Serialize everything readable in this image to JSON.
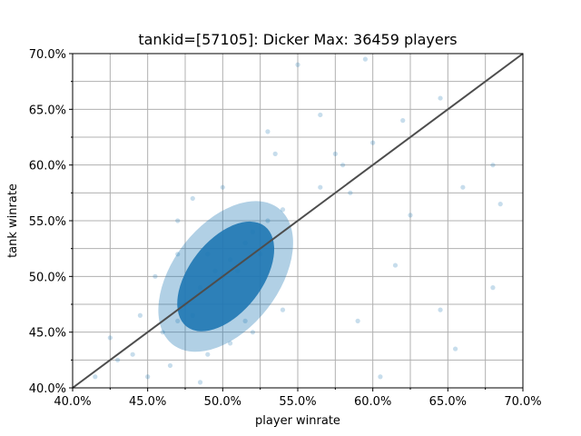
{
  "chart_data": {
    "type": "scatter",
    "title": "tankid=[57105]: Dicker Max: 36459 players",
    "xlabel": "player winrate",
    "ylabel": "tank winrate",
    "xlim": [
      0.4,
      0.7
    ],
    "ylim": [
      0.4,
      0.7
    ],
    "x_ticks": [
      {
        "value": 0.4,
        "label": "40.0%"
      },
      {
        "value": 0.45,
        "label": "45.0%"
      },
      {
        "value": 0.5,
        "label": "50.0%"
      },
      {
        "value": 0.55,
        "label": "55.0%"
      },
      {
        "value": 0.6,
        "label": "60.0%"
      },
      {
        "value": 0.65,
        "label": "65.0%"
      },
      {
        "value": 0.7,
        "label": "70.0%"
      }
    ],
    "y_ticks": [
      {
        "value": 0.4,
        "label": "40.0%"
      },
      {
        "value": 0.45,
        "label": "45.0%"
      },
      {
        "value": 0.5,
        "label": "50.0%"
      },
      {
        "value": 0.55,
        "label": "55.0%"
      },
      {
        "value": 0.6,
        "label": "60.0%"
      },
      {
        "value": 0.65,
        "label": "65.0%"
      },
      {
        "value": 0.7,
        "label": "70.0%"
      }
    ],
    "minor_ticks": [
      0.425,
      0.475,
      0.525,
      0.575,
      0.625,
      0.675
    ],
    "grid": true,
    "point_color": "#1f77b4",
    "point_alpha": 0.15,
    "reference_line": {
      "x": [
        0.4,
        0.7
      ],
      "y": [
        0.4,
        0.7
      ],
      "color": "#4d4d4d"
    },
    "series": [
      {
        "points": [
          [
            0.495,
            0.505
          ],
          [
            0.505,
            0.515
          ],
          [
            0.485,
            0.49
          ],
          [
            0.515,
            0.53
          ],
          [
            0.475,
            0.475
          ],
          [
            0.52,
            0.54
          ],
          [
            0.5,
            0.5
          ],
          [
            0.49,
            0.52
          ],
          [
            0.51,
            0.505
          ],
          [
            0.48,
            0.465
          ],
          [
            0.53,
            0.55
          ],
          [
            0.46,
            0.45
          ],
          [
            0.54,
            0.56
          ],
          [
            0.47,
            0.46
          ],
          [
            0.525,
            0.52
          ],
          [
            0.565,
            0.58
          ],
          [
            0.58,
            0.6
          ],
          [
            0.6,
            0.62
          ],
          [
            0.62,
            0.64
          ],
          [
            0.645,
            0.66
          ],
          [
            0.66,
            0.58
          ],
          [
            0.625,
            0.555
          ],
          [
            0.615,
            0.51
          ],
          [
            0.585,
            0.575
          ],
          [
            0.575,
            0.61
          ],
          [
            0.565,
            0.645
          ],
          [
            0.55,
            0.69
          ],
          [
            0.595,
            0.695
          ],
          [
            0.44,
            0.43
          ],
          [
            0.45,
            0.41
          ],
          [
            0.43,
            0.425
          ],
          [
            0.455,
            0.5
          ],
          [
            0.47,
            0.52
          ],
          [
            0.445,
            0.465
          ],
          [
            0.425,
            0.445
          ],
          [
            0.415,
            0.41
          ],
          [
            0.68,
            0.49
          ],
          [
            0.68,
            0.6
          ],
          [
            0.685,
            0.565
          ],
          [
            0.655,
            0.435
          ],
          [
            0.59,
            0.46
          ],
          [
            0.605,
            0.41
          ],
          [
            0.645,
            0.47
          ],
          [
            0.52,
            0.45
          ],
          [
            0.54,
            0.47
          ],
          [
            0.47,
            0.55
          ],
          [
            0.5,
            0.58
          ],
          [
            0.48,
            0.57
          ],
          [
            0.535,
            0.61
          ],
          [
            0.53,
            0.63
          ],
          [
            0.49,
            0.43
          ],
          [
            0.505,
            0.44
          ],
          [
            0.515,
            0.46
          ],
          [
            0.465,
            0.42
          ],
          [
            0.485,
            0.405
          ]
        ]
      }
    ]
  }
}
